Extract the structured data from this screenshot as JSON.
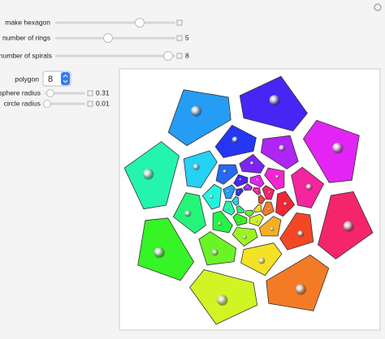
{
  "controls": {
    "make_hexagon": {
      "label": "make hexagon"
    },
    "rings": {
      "label": "number of rings",
      "value": 5
    },
    "spirals": {
      "label": "number of spirals",
      "value": 8
    },
    "polygon": {
      "label": "polygon",
      "value": 8
    },
    "sphere_radius": {
      "label": "sphere radius",
      "value": 0.31
    },
    "circle_radius": {
      "label": "circle radius",
      "value": 0.01
    }
  }
}
